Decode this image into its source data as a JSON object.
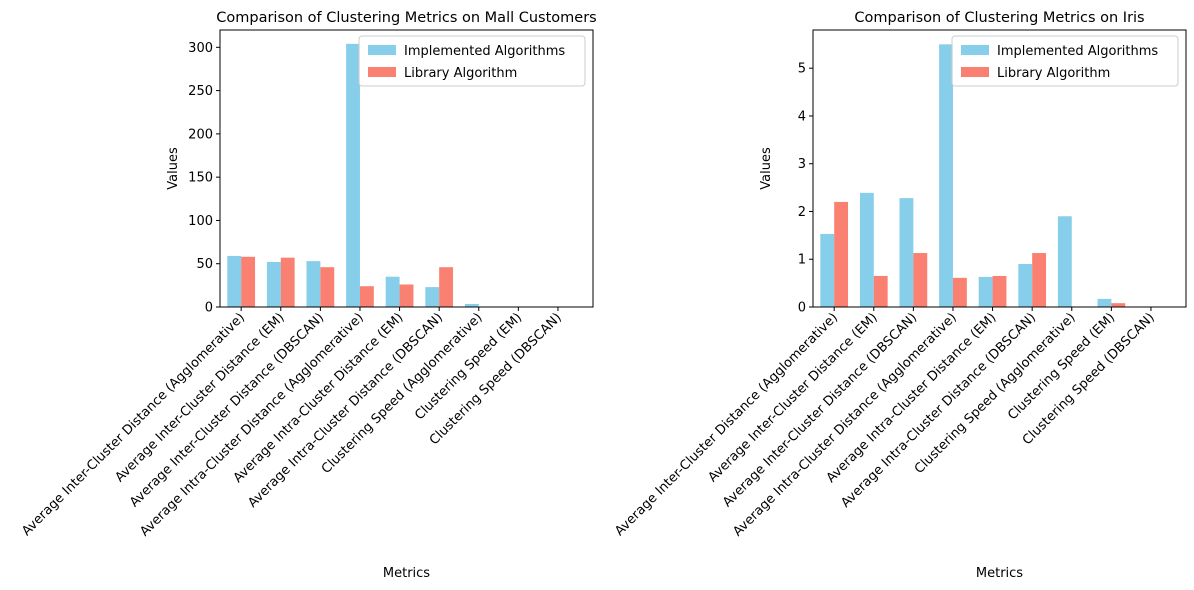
{
  "chart_data": [
    {
      "type": "bar",
      "title": "Comparison of Clustering Metrics on Mall Customers",
      "xlabel": "Metrics",
      "ylabel": "Values",
      "ylim": [
        0,
        320
      ],
      "yticks": [
        0,
        50,
        100,
        150,
        200,
        250,
        300
      ],
      "categories": [
        "Average Inter-Cluster Distance (Agglomerative)",
        "Average Inter-Cluster Distance (EM)",
        "Average Inter-Cluster Distance (DBSCAN)",
        "Average Intra-Cluster Distance (Agglomerative)",
        "Average Intra-Cluster Distance (EM)",
        "Average Intra-Cluster Distance (DBSCAN)",
        "Clustering Speed (Agglomerative)",
        "Clustering Speed (EM)",
        "Clustering Speed (DBSCAN)"
      ],
      "series": [
        {
          "name": "Implemented Algorithms",
          "color": "#87ceeb",
          "values": [
            59,
            52,
            53,
            304,
            35,
            23,
            3.5,
            0.3,
            0.2
          ]
        },
        {
          "name": "Library Algorithm",
          "color": "#fa8072",
          "values": [
            58,
            57,
            46,
            24,
            26,
            46,
            0.1,
            0.05,
            0.05
          ]
        }
      ],
      "legend": "top-right",
      "grid": false
    },
    {
      "type": "bar",
      "title": "Comparison of Clustering Metrics on Iris",
      "xlabel": "Metrics",
      "ylabel": "Values",
      "ylim": [
        0,
        5.8
      ],
      "yticks": [
        0,
        1,
        2,
        3,
        4,
        5
      ],
      "categories": [
        "Average Inter-Cluster Distance (Agglomerative)",
        "Average Inter-Cluster Distance (EM)",
        "Average Inter-Cluster Distance (DBSCAN)",
        "Average Intra-Cluster Distance (Agglomerative)",
        "Average Intra-Cluster Distance (EM)",
        "Average Intra-Cluster Distance (DBSCAN)",
        "Clustering Speed (Agglomerative)",
        "Clustering Speed (EM)",
        "Clustering Speed (DBSCAN)"
      ],
      "series": [
        {
          "name": "Implemented Algorithms",
          "color": "#87ceeb",
          "values": [
            1.53,
            2.39,
            2.28,
            5.5,
            0.63,
            0.9,
            1.9,
            0.17,
            0.01
          ]
        },
        {
          "name": "Library Algorithm",
          "color": "#fa8072",
          "values": [
            2.2,
            0.65,
            1.13,
            0.61,
            0.65,
            1.13,
            0.0,
            0.08,
            0.0
          ]
        }
      ],
      "legend": "top-right",
      "grid": false
    }
  ]
}
